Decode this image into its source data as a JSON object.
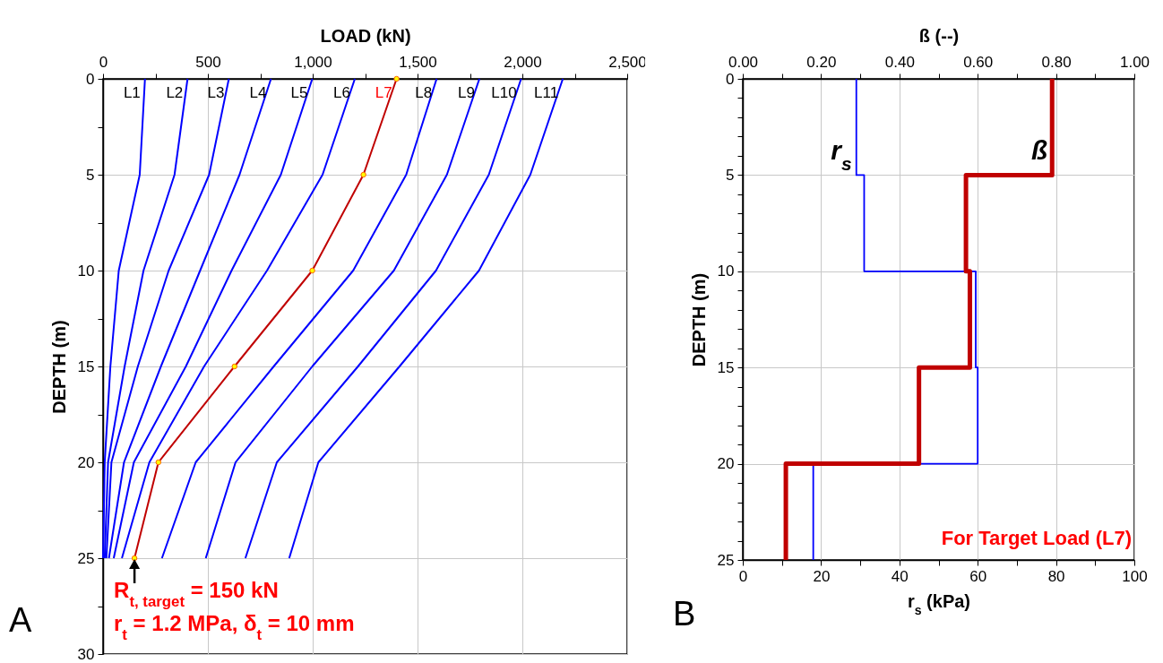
{
  "chart_data": [
    {
      "type": "line",
      "xlabel": "LOAD (kN)",
      "ylabel": "DEPTH (m)",
      "xlim": [
        0,
        2500
      ],
      "xticks": [
        0,
        {
          "value": 250,
          "label": null
        },
        500,
        {
          "value": 750,
          "label": null
        },
        {
          "value": 1000,
          "label": "1,000"
        },
        {
          "value": 1250,
          "label": null
        },
        {
          "value": 1500,
          "label": "1,500"
        },
        {
          "value": 1750,
          "label": null
        },
        {
          "value": 2000,
          "label": "2,000"
        },
        {
          "value": 2250,
          "label": null
        },
        {
          "value": 2500,
          "label": "2,500"
        }
      ],
      "ylim": [
        30,
        0
      ],
      "yticks": [
        0,
        {
          "value": 2.5,
          "label": null
        },
        5,
        {
          "value": 7.5,
          "label": null
        },
        10,
        {
          "value": 12.5,
          "label": null
        },
        15,
        {
          "value": 17.5,
          "label": null
        },
        20,
        {
          "value": 22.5,
          "label": null
        },
        25,
        {
          "value": 27.5,
          "label": null
        },
        30
      ],
      "grid": true,
      "series": [
        {
          "name": "L1",
          "color": "#0000ff",
          "x": [
            200,
            175,
            75,
            35,
            8,
            0
          ],
          "values": [
            0,
            5,
            10,
            15,
            20,
            25
          ]
        },
        {
          "name": "L2",
          "color": "#0000ff",
          "x": [
            403,
            341,
            193,
            103,
            24,
            8
          ],
          "values": [
            0,
            5,
            10,
            15,
            20,
            25
          ]
        },
        {
          "name": "L3",
          "color": "#0000ff",
          "x": [
            600,
            506,
            313,
            166,
            40,
            16
          ],
          "values": [
            0,
            5,
            10,
            15,
            20,
            25
          ]
        },
        {
          "name": "L4",
          "color": "#0000ff",
          "x": [
            801,
            651,
            463,
            276,
            100,
            28
          ],
          "values": [
            0,
            5,
            10,
            15,
            20,
            25
          ]
        },
        {
          "name": "L5",
          "color": "#0000ff",
          "x": [
            998,
            848,
            613,
            395,
            147,
            51
          ],
          "values": [
            0,
            5,
            10,
            15,
            20,
            25
          ]
        },
        {
          "name": "L6",
          "color": "#0000ff",
          "x": [
            1201,
            1047,
            782,
            482,
            221,
            90
          ],
          "values": [
            0,
            5,
            10,
            15,
            20,
            25
          ]
        },
        {
          "name": "L7",
          "color": "#c00000",
          "marker": "circle",
          "x": [
            1400,
            1242,
            998,
            627,
            264,
            150
          ],
          "values": [
            0,
            5,
            10,
            15,
            20,
            25
          ]
        },
        {
          "name": "L8",
          "color": "#0000ff",
          "x": [
            1591,
            1446,
            1193,
            814,
            442,
            281
          ],
          "values": [
            0,
            5,
            10,
            15,
            20,
            25
          ]
        },
        {
          "name": "L9",
          "color": "#0000ff",
          "x": [
            1795,
            1640,
            1387,
            998,
            632,
            490
          ],
          "values": [
            0,
            5,
            10,
            15,
            20,
            25
          ]
        },
        {
          "name": "L10",
          "color": "#0000ff",
          "x": [
            1994,
            1840,
            1588,
            1216,
            829,
            679
          ],
          "values": [
            0,
            5,
            10,
            15,
            20,
            25
          ]
        },
        {
          "name": "L11",
          "color": "#0000ff",
          "x": [
            2193,
            2038,
            1793,
            1414,
            1027,
            888
          ],
          "values": [
            0,
            5,
            10,
            15,
            20,
            25
          ]
        }
      ],
      "annotations": [
        {
          "text": "R$_{t, target}$ = 150 kN",
          "x": 150,
          "y": 25
        },
        "r$_{t}$ = 1.2 MPa, δ$_{t}$ = 10 mm",
        "A"
      ]
    },
    {
      "type": "line",
      "xlabel": "r$_{s}$ (kPa)",
      "x2label": "ß (--)",
      "ylabel": "DEPTH (m)",
      "xlim": [
        0,
        100
      ],
      "xticks": [
        0,
        {
          "value": 10,
          "label": null
        },
        20,
        {
          "value": 30,
          "label": null
        },
        40,
        {
          "value": 50,
          "label": null
        },
        60,
        {
          "value": 70,
          "label": null
        },
        80,
        {
          "value": 90,
          "label": null
        },
        100
      ],
      "x2lim": [
        0,
        1
      ],
      "x2ticks": [
        {
          "value": 0,
          "label": "0.00"
        },
        {
          "value": 0.1,
          "label": null
        },
        {
          "value": 0.2,
          "label": "0.20"
        },
        {
          "value": 0.3,
          "label": null
        },
        {
          "value": 0.4,
          "label": "0.40"
        },
        {
          "value": 0.5,
          "label": null
        },
        {
          "value": 0.6,
          "label": "0.60"
        },
        {
          "value": 0.7,
          "label": null
        },
        {
          "value": 0.8,
          "label": "0.80"
        },
        {
          "value": 0.9,
          "label": null
        },
        {
          "value": 1,
          "label": "1.00"
        }
      ],
      "ylim": [
        25,
        0
      ],
      "yticks": [
        0,
        {
          "value": 1,
          "label": null
        },
        {
          "value": 2,
          "label": null
        },
        {
          "value": 3,
          "label": null
        },
        {
          "value": 4,
          "label": null
        },
        5,
        {
          "value": 6,
          "label": null
        },
        {
          "value": 7,
          "label": null
        },
        {
          "value": 8,
          "label": null
        },
        {
          "value": 9,
          "label": null
        },
        10,
        {
          "value": 11,
          "label": null
        },
        {
          "value": 12,
          "label": null
        },
        {
          "value": 13,
          "label": null
        },
        {
          "value": 14,
          "label": null
        },
        15,
        {
          "value": 16,
          "label": null
        },
        {
          "value": 17,
          "label": null
        },
        {
          "value": 18,
          "label": null
        },
        {
          "value": 19,
          "label": null
        },
        20,
        {
          "value": 21,
          "label": null
        },
        {
          "value": 22,
          "label": null
        },
        {
          "value": 23,
          "label": null
        },
        {
          "value": 24,
          "label": null
        },
        25
      ],
      "grid": true,
      "series": [
        {
          "name": "r$_{s}$",
          "color": "#0000ff",
          "x": [
            29,
            29,
            31,
            31,
            59.5,
            59.5,
            60,
            60,
            18,
            18
          ],
          "values": [
            0,
            5,
            5,
            10,
            10,
            15,
            15,
            20,
            20,
            25
          ]
        },
        {
          "name": "ß",
          "color": "#c00000",
          "axis": "x2",
          "x": [
            0.79,
            0.79,
            0.57,
            0.57,
            0.58,
            0.58,
            0.45,
            0.45,
            0.11,
            0.11
          ],
          "values": [
            0,
            5,
            5,
            10,
            10,
            15,
            15,
            20,
            20,
            25
          ]
        }
      ],
      "annotations": [
        "For Target Load (L7)",
        "B"
      ]
    }
  ]
}
